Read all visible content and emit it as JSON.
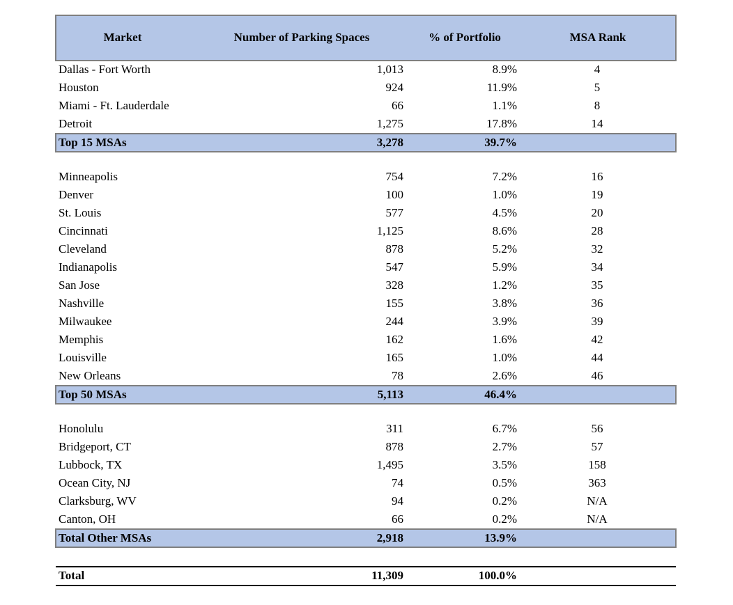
{
  "table": {
    "header": [
      "Market",
      "Number of Parking Spaces",
      "% of Portfolio",
      "MSA Rank"
    ],
    "groups": [
      {
        "rows": [
          [
            "Dallas - Fort Worth",
            "1,013",
            "8.9%",
            "4"
          ],
          [
            "Houston",
            "924",
            "11.9%",
            "5"
          ],
          [
            "Miami - Ft. Lauderdale",
            "66",
            "1.1%",
            "8"
          ],
          [
            "Detroit",
            "1,275",
            "17.8%",
            "14"
          ]
        ],
        "subtotal": [
          "Top 15 MSAs",
          "3,278",
          "39.7%"
        ]
      },
      {
        "rows": [
          [
            "Minneapolis",
            "754",
            "7.2%",
            "16"
          ],
          [
            "Denver",
            "100",
            "1.0%",
            "19"
          ],
          [
            "St. Louis",
            "577",
            "4.5%",
            "20"
          ],
          [
            "Cincinnati",
            "1,125",
            "8.6%",
            "28"
          ],
          [
            "Cleveland",
            "878",
            "5.2%",
            "32"
          ],
          [
            "Indianapolis",
            "547",
            "5.9%",
            "34"
          ],
          [
            "San Jose",
            "328",
            "1.2%",
            "35"
          ],
          [
            "Nashville",
            "155",
            "3.8%",
            "36"
          ],
          [
            "Milwaukee",
            "244",
            "3.9%",
            "39"
          ],
          [
            "Memphis",
            "162",
            "1.6%",
            "42"
          ],
          [
            "Louisville",
            "165",
            "1.0%",
            "44"
          ],
          [
            "New Orleans",
            "78",
            "2.6%",
            "46"
          ]
        ],
        "subtotal": [
          "Top 50 MSAs",
          "5,113",
          "46.4%"
        ]
      },
      {
        "rows": [
          [
            "Honolulu",
            "311",
            "6.7%",
            "56"
          ],
          [
            "Bridgeport, CT",
            "878",
            "2.7%",
            "57"
          ],
          [
            "Lubbock, TX",
            "1,495",
            "3.5%",
            "158"
          ],
          [
            "Ocean City, NJ",
            "74",
            "0.5%",
            "363"
          ],
          [
            "Clarksburg, WV",
            "94",
            "0.2%",
            "N/A"
          ],
          [
            "Canton, OH",
            "66",
            "0.2%",
            "N/A"
          ]
        ],
        "subtotal": [
          "Total Other MSAs",
          "2,918",
          "13.9%"
        ]
      }
    ],
    "total": [
      "Total",
      "11,309",
      "100.0%"
    ]
  }
}
